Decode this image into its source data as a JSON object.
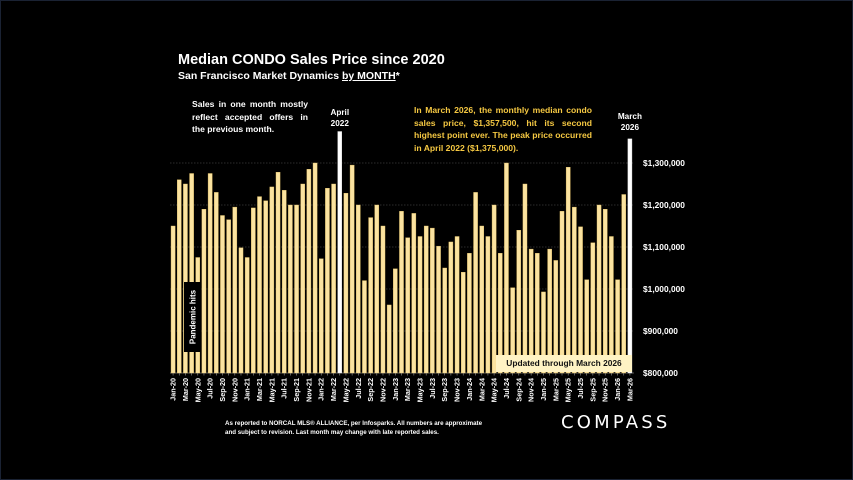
{
  "colors": {
    "background": "#000000",
    "bar": "#fbe3a0",
    "bar_edge": "#e8c56a",
    "highlight_bar": "#ffffff",
    "note_text": "#f5c842",
    "updated_box": "#fff3c4"
  },
  "header": {
    "title": "Median CONDO Sales Price since 2020",
    "subtitle_prefix": "San Francisco Market Dynamics ",
    "subtitle_underlined": "by MONTH",
    "subtitle_suffix": "*"
  },
  "notes": {
    "left": "Sales in one month mostly reflect accepted offers in the previous month.",
    "right": "In March 2026, the monthly median condo sales price, $1,357,500, hit its second highest point ever. The peak price occurred in April 2022 ($1,375,000).",
    "marker_april_2022": [
      "April",
      "2022"
    ],
    "marker_march_2026": [
      "March",
      "2026"
    ],
    "pandemic": "Pandemic hits",
    "updated": "Updated through March 2026"
  },
  "footer": {
    "disclaimer_line1": "As reported to NORCAL MLS® ALLIANCE, per Infosparks. All numbers are approximate",
    "disclaimer_line2": "and subject to revision. Last month may change with late reported sales.",
    "logo": "COMPASS"
  },
  "chart_data": {
    "type": "bar",
    "title": "Median CONDO Sales Price since 2020",
    "subtitle": "San Francisco Market Dynamics by MONTH*",
    "xlabel": "",
    "ylabel": "",
    "ylim": [
      800000,
      1300000
    ],
    "yticks": [
      800000,
      900000,
      1000000,
      1100000,
      1200000,
      1300000
    ],
    "ytick_labels": [
      "$800,000",
      "$900,000",
      "$1,000,000",
      "$1,100,000",
      "$1,200,000",
      "$1,300,000"
    ],
    "y_axis_position": "right",
    "grid": true,
    "highlighted": [
      "Apr-22",
      "Mar-26"
    ],
    "xtick_labels": [
      "Jan-20",
      "Mar-20",
      "May-20",
      "Jul-20",
      "Sep-20",
      "Nov-20",
      "Jan-21",
      "Mar-21",
      "May-21",
      "Jul-21",
      "Sep-21",
      "Nov-21",
      "Jan-22",
      "Mar-22",
      "May-22",
      "Jul-22",
      "Sep-22",
      "Nov-22",
      "Jan-23",
      "Mar-23",
      "May-23",
      "Jul-23",
      "Sep-23",
      "Nov-23",
      "Jan-24",
      "Mar-24",
      "May-24",
      "Jul-24",
      "Sep-24",
      "Nov-24",
      "Jan-25",
      "Mar-25",
      "May-25",
      "Jul-25",
      "Sep-25",
      "Nov-25",
      "Jan-26",
      "Mar-26"
    ],
    "categories": [
      "Jan-20",
      "Feb-20",
      "Mar-20",
      "Apr-20",
      "May-20",
      "Jun-20",
      "Jul-20",
      "Aug-20",
      "Sep-20",
      "Oct-20",
      "Nov-20",
      "Dec-20",
      "Jan-21",
      "Feb-21",
      "Mar-21",
      "Apr-21",
      "May-21",
      "Jun-21",
      "Jul-21",
      "Aug-21",
      "Sep-21",
      "Oct-21",
      "Nov-21",
      "Dec-21",
      "Jan-22",
      "Feb-22",
      "Mar-22",
      "Apr-22",
      "May-22",
      "Jun-22",
      "Jul-22",
      "Aug-22",
      "Sep-22",
      "Oct-22",
      "Nov-22",
      "Dec-22",
      "Jan-23",
      "Feb-23",
      "Mar-23",
      "Apr-23",
      "May-23",
      "Jun-23",
      "Jul-23",
      "Aug-23",
      "Sep-23",
      "Oct-23",
      "Nov-23",
      "Dec-23",
      "Jan-24",
      "Feb-24",
      "Mar-24",
      "Apr-24",
      "May-24",
      "Jun-24",
      "Jul-24",
      "Aug-24",
      "Sep-24",
      "Oct-24",
      "Nov-24",
      "Dec-24",
      "Jan-25",
      "Feb-25",
      "Mar-25",
      "Apr-25",
      "May-25",
      "Jun-25",
      "Jul-25",
      "Aug-25",
      "Sep-25",
      "Oct-25",
      "Nov-25",
      "Dec-25",
      "Jan-26",
      "Feb-26",
      "Mar-26"
    ],
    "values": [
      1150000,
      1260000,
      1250000,
      1275000,
      1075000,
      1190000,
      1275000,
      1230000,
      1175000,
      1165000,
      1195000,
      1098000,
      1075000,
      1193000,
      1220000,
      1210000,
      1243000,
      1278000,
      1235000,
      1200000,
      1200000,
      1250000,
      1285000,
      1300000,
      1072000,
      1240000,
      1250000,
      1375000,
      1228000,
      1295000,
      1200000,
      1020000,
      1170000,
      1200000,
      1150000,
      962000,
      1048000,
      1185000,
      1122000,
      1180000,
      1125000,
      1150000,
      1145000,
      1102000,
      1050000,
      1112000,
      1125000,
      1040000,
      1085000,
      1230000,
      1150000,
      1125000,
      1200000,
      1085000,
      1300000,
      1003000,
      1140000,
      1250000,
      1095000,
      1085000,
      993000,
      1095000,
      1068000,
      1185000,
      1290000,
      1195000,
      1148000,
      1022000,
      1110000,
      1200000,
      1190000,
      1125000,
      1022000,
      1225000,
      1357500
    ]
  }
}
